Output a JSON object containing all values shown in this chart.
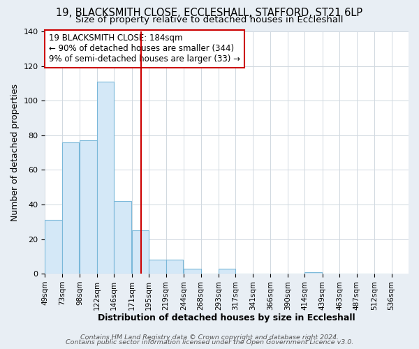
{
  "title": "19, BLACKSMITH CLOSE, ECCLESHALL, STAFFORD, ST21 6LP",
  "subtitle": "Size of property relative to detached houses in Eccleshall",
  "xlabel": "Distribution of detached houses by size in Eccleshall",
  "ylabel": "Number of detached properties",
  "bar_left_edges": [
    49,
    73,
    98,
    122,
    146,
    171,
    195,
    219,
    244,
    268,
    293,
    317,
    341,
    366,
    390,
    414,
    439,
    463,
    487,
    512
  ],
  "bar_heights": [
    31,
    76,
    77,
    111,
    42,
    25,
    8,
    8,
    3,
    0,
    3,
    0,
    0,
    0,
    0,
    1,
    0,
    0,
    0,
    0
  ],
  "bin_width": 24,
  "tick_labels": [
    "49sqm",
    "73sqm",
    "98sqm",
    "122sqm",
    "146sqm",
    "171sqm",
    "195sqm",
    "219sqm",
    "244sqm",
    "268sqm",
    "293sqm",
    "317sqm",
    "341sqm",
    "366sqm",
    "390sqm",
    "414sqm",
    "439sqm",
    "463sqm",
    "487sqm",
    "512sqm",
    "536sqm"
  ],
  "vline_x": 184,
  "ylim": [
    0,
    140
  ],
  "bar_facecolor": "#d4e8f7",
  "bar_edgecolor": "#7ab8d9",
  "vline_color": "#cc0000",
  "annotation_line1": "19 BLACKSMITH CLOSE: 184sqm",
  "annotation_line2": "← 90% of detached houses are smaller (344)",
  "annotation_line3": "9% of semi-detached houses are larger (33) →",
  "annotation_box_edgecolor": "#cc0000",
  "annotation_box_facecolor": "#ffffff",
  "footer_line1": "Contains HM Land Registry data © Crown copyright and database right 2024.",
  "footer_line2": "Contains public sector information licensed under the Open Government Licence v3.0.",
  "background_color": "#e8eef4",
  "plot_background_color": "#ffffff",
  "grid_color": "#d0d8e0",
  "title_fontsize": 10.5,
  "subtitle_fontsize": 9.5,
  "axis_label_fontsize": 9,
  "annotation_fontsize": 8.5,
  "tick_fontsize": 7.5,
  "footer_fontsize": 6.8
}
